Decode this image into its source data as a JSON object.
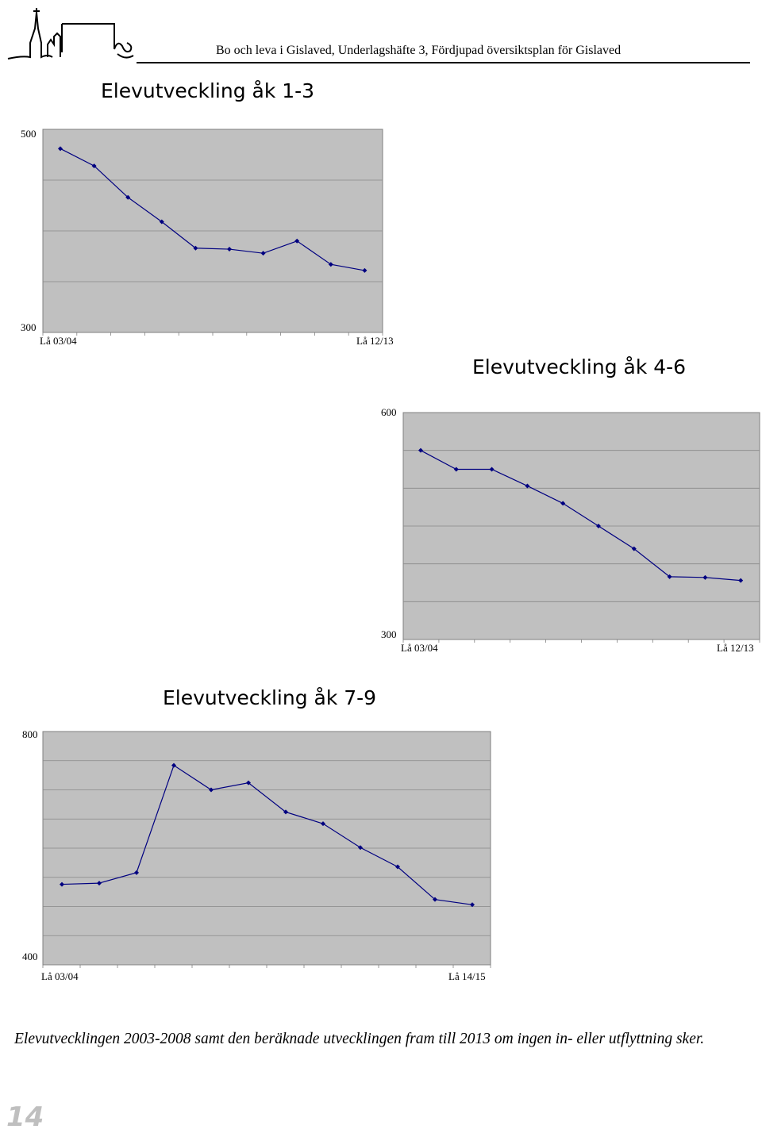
{
  "header": {
    "title": "Bo och leva i Gislaved, Underlagshäfte 3, Fördjupad översiktsplan för Gislaved"
  },
  "colors": {
    "plot_background": "#c0c0c0",
    "gridline": "#888888",
    "series_line": "#000080"
  },
  "chart_data": [
    {
      "type": "line",
      "title": "Elevutveckling åk 1-3",
      "xlabel": "",
      "ylabel": "",
      "ylim": [
        300,
        500
      ],
      "grid": true,
      "ytick_labels": [
        "500",
        "300"
      ],
      "x_first_label": "Lå 03/04",
      "x_last_label": "Lå 12/13",
      "series": [
        {
          "values": [
            481,
            464,
            433,
            409,
            383,
            382,
            378,
            390,
            367,
            361
          ]
        }
      ]
    },
    {
      "type": "line",
      "title": "Elevutveckling åk 4-6",
      "xlabel": "",
      "ylabel": "",
      "ylim": [
        300,
        600
      ],
      "grid": true,
      "ytick_labels": [
        "600",
        "300"
      ],
      "x_first_label": "Lå 03/04",
      "x_last_label": "Lå 12/13",
      "series": [
        {
          "values": [
            550,
            525,
            525,
            503,
            480,
            450,
            420,
            383,
            382,
            378
          ]
        }
      ]
    },
    {
      "type": "line",
      "title": "Elevutveckling åk 7-9",
      "xlabel": "",
      "ylabel": "",
      "ylim": [
        400,
        800
      ],
      "grid": true,
      "ytick_labels": [
        "800",
        "400"
      ],
      "x_first_label": "Lå 03/04",
      "x_last_label": "Lå 14/15",
      "series": [
        {
          "values": [
            538,
            540,
            558,
            742,
            700,
            712,
            662,
            642,
            601,
            568,
            512,
            503
          ]
        }
      ]
    }
  ],
  "caption": "Elevutvecklingen 2003-2008 samt den beräknade utvecklingen fram till 2013 om ingen in- eller utflyttning sker.",
  "page_number": "14"
}
